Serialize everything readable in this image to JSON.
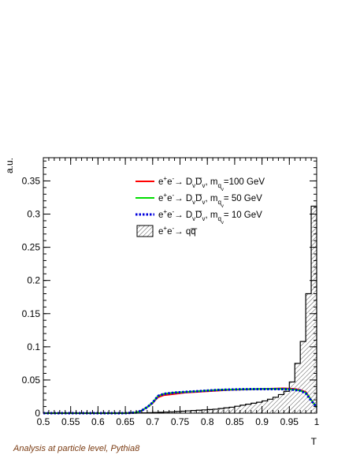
{
  "caption": "Analysis at particle level, Pythia8",
  "chart_data": {
    "type": "line",
    "xlabel": "T",
    "ylabel": "a.u.",
    "xlim": [
      0.5,
      1.0
    ],
    "ylim": [
      0,
      0.385
    ],
    "x_ticks": [
      "0.5",
      "0.55",
      "0.6",
      "0.65",
      "0.7",
      "0.75",
      "0.8",
      "0.85",
      "0.9",
      "0.95",
      "1"
    ],
    "y_ticks": [
      "0",
      "0.05",
      "0.1",
      "0.15",
      "0.2",
      "0.25",
      "0.3",
      "0.35"
    ],
    "legend_position": "top-right",
    "series": [
      {
        "name": "e+e- → DvD̄v, mqv=100 GeV",
        "legend_base": "e",
        "legend_parts": [
          "+",
          "e",
          "-",
          "→ D",
          "v",
          "D",
          "v",
          ", m",
          "q",
          "v",
          "=100 GeV"
        ],
        "color": "#ff0000",
        "style": "solid",
        "x": [
          0.5,
          0.65,
          0.67,
          0.68,
          0.69,
          0.7,
          0.705,
          0.71,
          0.72,
          0.74,
          0.76,
          0.78,
          0.8,
          0.82,
          0.84,
          0.86,
          0.88,
          0.9,
          0.92,
          0.94,
          0.95,
          0.96,
          0.97,
          0.98,
          0.99,
          1.0
        ],
        "values": [
          0.0,
          0.0,
          0.001,
          0.004,
          0.009,
          0.015,
          0.02,
          0.024,
          0.027,
          0.029,
          0.031,
          0.032,
          0.033,
          0.034,
          0.035,
          0.0355,
          0.036,
          0.0365,
          0.037,
          0.0375,
          0.037,
          0.0365,
          0.035,
          0.032,
          0.02,
          0.009
        ]
      },
      {
        "name": "e+e- → DvD̄v, mqv= 50 GeV",
        "legend_base": "e",
        "legend_parts": [
          "+",
          "e",
          "-",
          "→ D",
          "v",
          "D",
          "v",
          ", m",
          "q",
          "v",
          "= 50 GeV"
        ],
        "color": "#00dd00",
        "style": "solid",
        "x": [
          0.5,
          0.65,
          0.67,
          0.68,
          0.69,
          0.7,
          0.705,
          0.71,
          0.72,
          0.74,
          0.76,
          0.78,
          0.8,
          0.82,
          0.84,
          0.86,
          0.88,
          0.9,
          0.92,
          0.94,
          0.95,
          0.96,
          0.97,
          0.98,
          0.99,
          1.0
        ],
        "values": [
          0.0,
          0.0,
          0.001,
          0.004,
          0.009,
          0.016,
          0.021,
          0.026,
          0.029,
          0.031,
          0.032,
          0.033,
          0.034,
          0.035,
          0.0355,
          0.036,
          0.0362,
          0.0365,
          0.0365,
          0.0365,
          0.036,
          0.0355,
          0.034,
          0.031,
          0.02,
          0.009
        ]
      },
      {
        "name": "e+e- → DvD̄v, mqv= 10 GeV",
        "legend_base": "e",
        "legend_parts": [
          "+",
          "e",
          "-",
          "→ D",
          "v",
          "D",
          "v",
          ", m",
          "q",
          "v",
          "= 10 GeV"
        ],
        "color": "#0000dd",
        "style": "dashed",
        "x": [
          0.5,
          0.65,
          0.67,
          0.68,
          0.69,
          0.7,
          0.705,
          0.71,
          0.72,
          0.74,
          0.76,
          0.78,
          0.8,
          0.82,
          0.84,
          0.86,
          0.88,
          0.9,
          0.92,
          0.94,
          0.95,
          0.96,
          0.97,
          0.98,
          0.99,
          1.0
        ],
        "values": [
          0.0,
          0.0,
          0.001,
          0.004,
          0.009,
          0.016,
          0.021,
          0.026,
          0.029,
          0.031,
          0.032,
          0.033,
          0.034,
          0.035,
          0.0355,
          0.036,
          0.0362,
          0.0363,
          0.0363,
          0.0362,
          0.036,
          0.035,
          0.034,
          0.03,
          0.019,
          0.009
        ]
      }
    ],
    "histogram": {
      "name": "e+e- → qq̄",
      "legend_parts": [
        "+",
        "e",
        "-",
        "→ q",
        "q"
      ],
      "bin_edges": [
        0.5,
        0.67,
        0.68,
        0.69,
        0.7,
        0.71,
        0.72,
        0.73,
        0.74,
        0.75,
        0.76,
        0.77,
        0.78,
        0.79,
        0.8,
        0.81,
        0.82,
        0.83,
        0.84,
        0.85,
        0.86,
        0.87,
        0.88,
        0.89,
        0.9,
        0.91,
        0.92,
        0.93,
        0.94,
        0.95,
        0.96,
        0.97,
        0.98,
        0.99,
        1.0
      ],
      "values": [
        0.0,
        0.0002,
        0.0005,
        0.0008,
        0.001,
        0.0013,
        0.0017,
        0.002,
        0.0025,
        0.003,
        0.0035,
        0.004,
        0.0045,
        0.005,
        0.0055,
        0.006,
        0.007,
        0.008,
        0.009,
        0.0105,
        0.012,
        0.0135,
        0.015,
        0.0165,
        0.0185,
        0.021,
        0.024,
        0.028,
        0.033,
        0.047,
        0.075,
        0.108,
        0.18,
        0.312
      ]
    }
  }
}
